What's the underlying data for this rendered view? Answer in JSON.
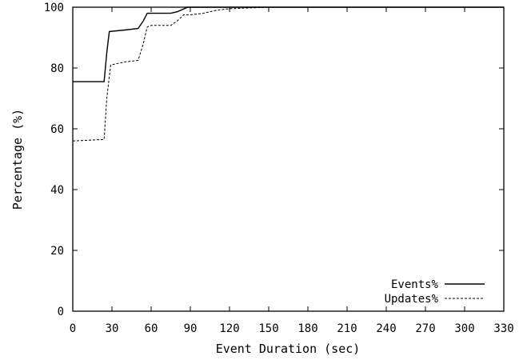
{
  "chart_data": {
    "type": "line",
    "title": "",
    "xlabel": "Event Duration (sec)",
    "ylabel": "Percentage (%)",
    "xlim": [
      0,
      330
    ],
    "ylim": [
      0,
      100
    ],
    "xticks": [
      "0",
      "30",
      "60",
      "90",
      "120",
      "150",
      "180",
      "210",
      "240",
      "270",
      "300",
      "330"
    ],
    "yticks": [
      "0",
      "20",
      "40",
      "60",
      "80",
      "100"
    ],
    "grid": false,
    "legend_position": "bottom-right",
    "series": [
      {
        "name": "Events%",
        "style": "solid",
        "x": [
          0,
          24,
          26,
          28,
          40,
          50,
          54,
          57,
          60,
          75,
          80,
          88,
          330
        ],
        "y": [
          75.5,
          75.5,
          85,
          92,
          92.5,
          93,
          95.5,
          98,
          98,
          98,
          98.5,
          100,
          100
        ]
      },
      {
        "name": "Updates%",
        "style": "dashed",
        "x": [
          0,
          24,
          26,
          29,
          40,
          50,
          54,
          57,
          60,
          75,
          80,
          85,
          90,
          100,
          110,
          120,
          150,
          330
        ],
        "y": [
          56,
          56.5,
          70,
          81,
          82,
          82.5,
          88,
          93.5,
          94,
          94,
          95.5,
          97.5,
          97.5,
          98,
          99,
          99.5,
          100,
          100
        ]
      }
    ]
  }
}
